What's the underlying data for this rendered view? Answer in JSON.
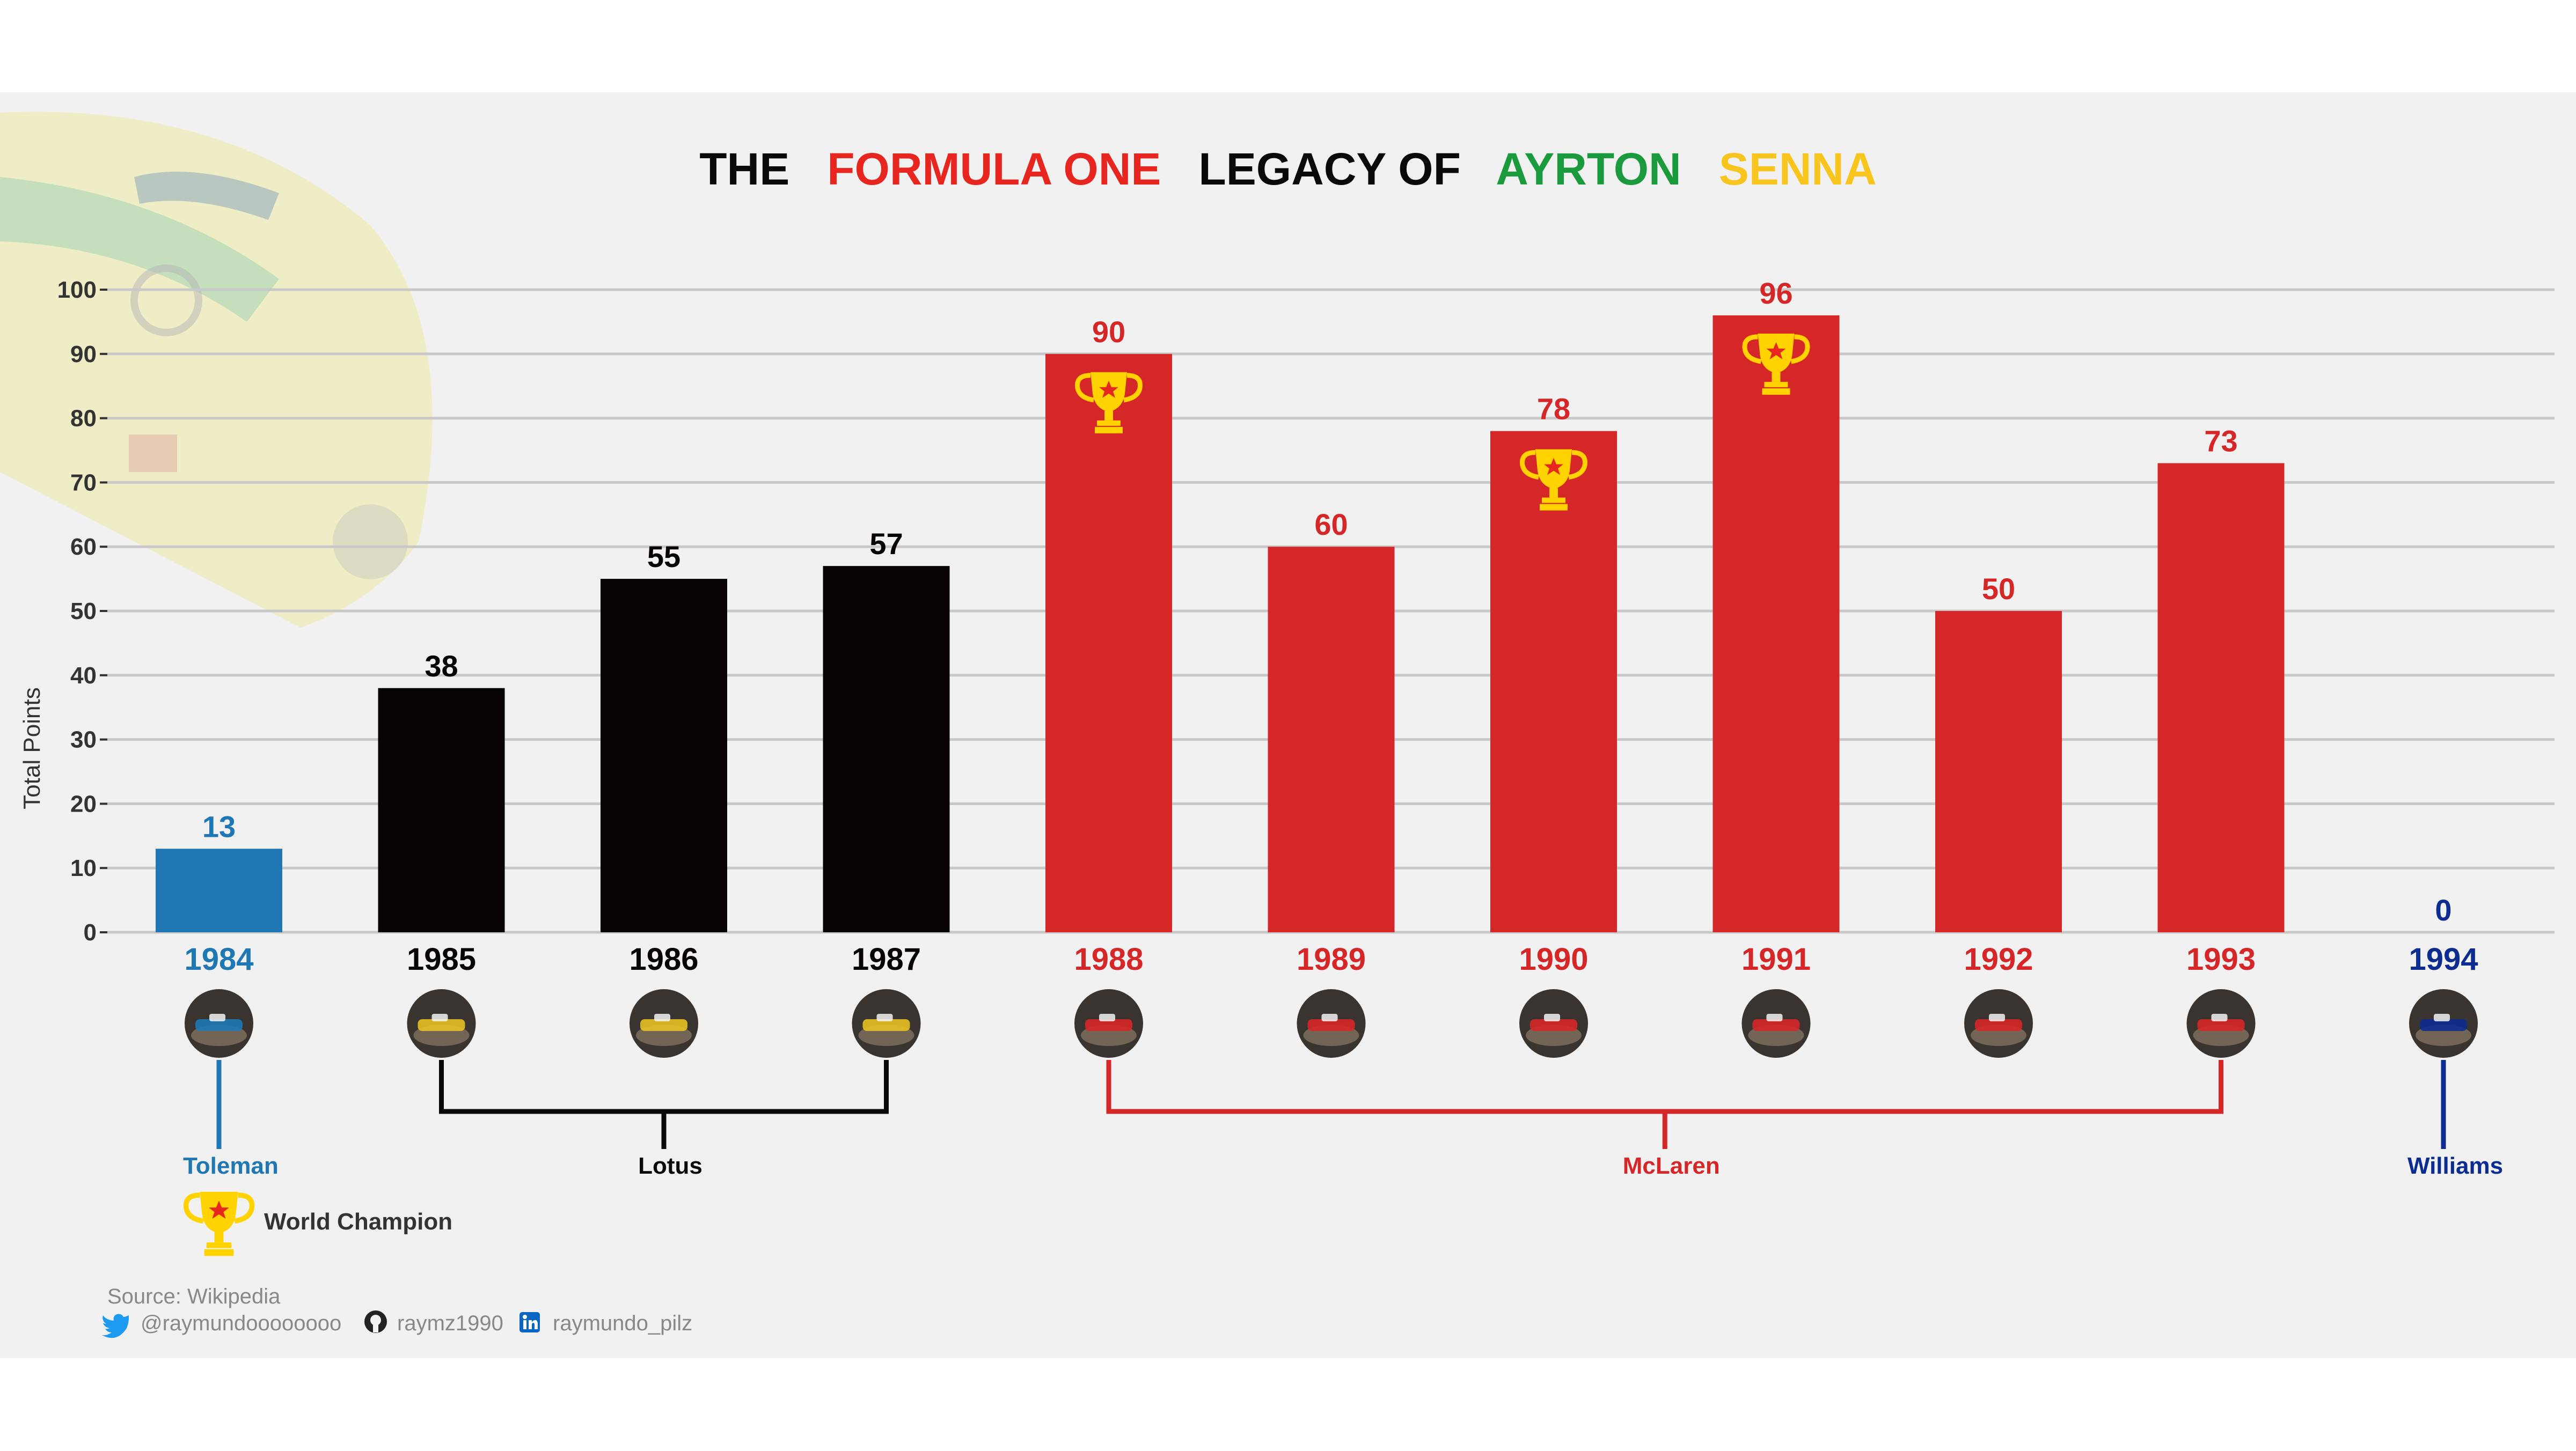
{
  "chart_data": {
    "type": "bar",
    "title_parts": [
      {
        "text": "THE",
        "color": "#0a0a0a"
      },
      {
        "text": "FORMULA ONE",
        "color": "#e6261f"
      },
      {
        "text": "LEGACY OF",
        "color": "#0a0a0a"
      },
      {
        "text": "AYRTON",
        "color": "#1a9a3c"
      },
      {
        "text": "SENNA",
        "color": "#f7c51e"
      }
    ],
    "ylabel": "Total Points",
    "ylim": [
      0,
      100
    ],
    "yticks": [
      0,
      10,
      20,
      30,
      40,
      50,
      60,
      70,
      80,
      90,
      100
    ],
    "grid": true,
    "categories": [
      "1984",
      "1985",
      "1986",
      "1987",
      "1988",
      "1989",
      "1990",
      "1991",
      "1992",
      "1993",
      "1994"
    ],
    "values": [
      13,
      38,
      55,
      57,
      90,
      60,
      78,
      96,
      50,
      73,
      0
    ],
    "value_labels": [
      "13",
      "38",
      "55",
      "57",
      "90",
      "60",
      "78",
      "96",
      "50",
      "73",
      "0"
    ],
    "bar_colors": [
      "#1f77b4",
      "#080404",
      "#080404",
      "#080404",
      "#d62728",
      "#d62728",
      "#d62728",
      "#d62728",
      "#d62728",
      "#d62728",
      "#0c2c8f"
    ],
    "champion_years": [
      "1988",
      "1990",
      "1991"
    ],
    "teams": [
      {
        "name": "Toleman",
        "color": "#1f77b4",
        "from": 0,
        "to": 0
      },
      {
        "name": "Lotus",
        "color": "#0a0a0a",
        "from": 1,
        "to": 3
      },
      {
        "name": "McLaren",
        "color": "#d62728",
        "from": 4,
        "to": 9
      },
      {
        "name": "Williams",
        "color": "#0c2c8f",
        "from": 10,
        "to": 10
      }
    ],
    "legend": {
      "label": "World Champion",
      "icon": "trophy-icon",
      "placement": "bottom-left"
    }
  },
  "source_label": "Source: Wikipedia",
  "social": [
    {
      "icon": "twitter-icon",
      "handle": "@raymundoooooooo"
    },
    {
      "icon": "github-icon",
      "handle": "raymz1990"
    },
    {
      "icon": "linkedin-icon",
      "handle": "raymundo_pilz"
    }
  ],
  "colors": {
    "panel": "#f1f1f1",
    "grid": "#c8c8c8",
    "trophy": "#ffd200",
    "trophy_star": "#e6261f"
  }
}
